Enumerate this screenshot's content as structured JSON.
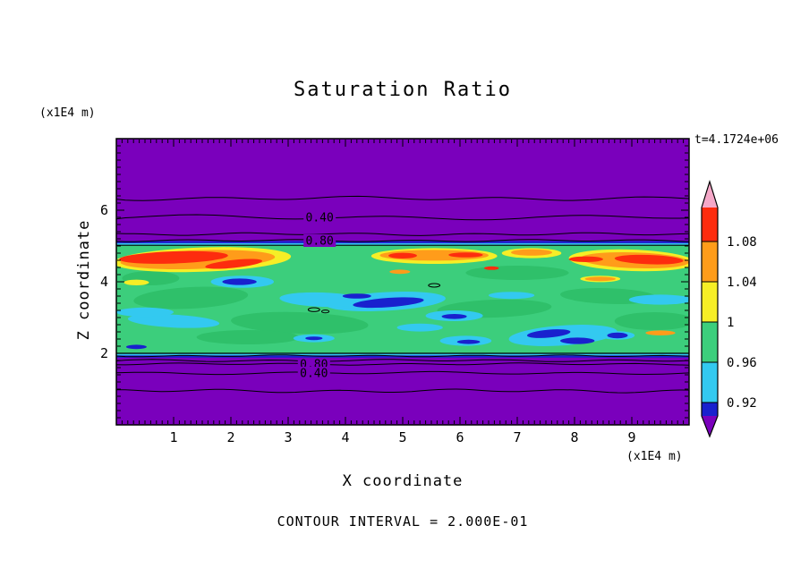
{
  "chart_data": {
    "type": "contour",
    "title": "Saturation Ratio",
    "xlabel": "X coordinate",
    "ylabel": "Z coordinate",
    "x_unit_label": "(x1E4 m)",
    "z_unit_label": "(x1E4 m)",
    "time_annotation": "t=4.1724e+06",
    "footer_note": "CONTOUR INTERVAL = 2.000E-01",
    "xlim": [
      0,
      10
    ],
    "zlim": [
      0,
      8
    ],
    "x_ticks": [
      1,
      2,
      3,
      4,
      5,
      6,
      7,
      8,
      9
    ],
    "z_ticks": [
      2,
      4,
      6
    ],
    "x_minor_step": 0.1,
    "z_minor_step": 0.2,
    "grid": false,
    "palette": {
      "purple": "#7A00BC",
      "blue": "#1921CE",
      "cyan": "#33C9F0",
      "green": "#3CCE7C",
      "green_dark": "#2FC06A",
      "yellow": "#F6EE26",
      "orange": "#FF9C1A",
      "red": "#FD2C0E",
      "pink": "#F5A8C8",
      "line": "#000000"
    },
    "colorbar": {
      "boundary_labels": [
        "1.08",
        "1.04",
        "1",
        "0.96",
        "0.92"
      ],
      "segments_top_to_bottom": [
        "red",
        "orange",
        "yellow",
        "green",
        "cyan",
        "blue"
      ],
      "tip_top": "pink",
      "tip_bottom": "purple"
    },
    "band": {
      "z_bottom": 2.0,
      "z_top": 5.02
    },
    "contour_lines": [
      {
        "z": 6.33,
        "amp": 1.6,
        "freq": 4,
        "phase": 0.5
      },
      {
        "z": 5.8,
        "amp": 2.0,
        "freq": 3,
        "phase": 2.1,
        "label": "0.40",
        "label_x": 3.55
      },
      {
        "z": 5.33,
        "amp": 1.1,
        "freq": 5,
        "phase": 4.0
      },
      {
        "z": 5.15,
        "amp": 0.9,
        "freq": 5,
        "phase": 1.0,
        "label": "0.80",
        "label_x": 3.55
      },
      {
        "z": 1.93,
        "amp": 0.7,
        "freq": 6,
        "phase": 0.3
      },
      {
        "z": 1.8,
        "amp": 0.9,
        "freq": 5,
        "phase": 2.6
      },
      {
        "z": 1.7,
        "amp": 0.8,
        "freq": 5,
        "phase": 1.4,
        "label": "0.80",
        "label_x": 3.45
      },
      {
        "z": 1.45,
        "amp": 1.1,
        "freq": 4,
        "phase": 3.3,
        "label": "0.40",
        "label_x": 3.45
      },
      {
        "z": 0.95,
        "amp": 1.4,
        "freq": 5,
        "phase": 5.2
      }
    ],
    "blobs": [
      [
        "green_dark",
        1.3,
        3.55,
        1.0,
        0.3,
        -3
      ],
      [
        "green_dark",
        3.2,
        2.85,
        1.2,
        0.3,
        2
      ],
      [
        "green_dark",
        6.6,
        3.25,
        1.0,
        0.25,
        -2
      ],
      [
        "green_dark",
        8.6,
        3.6,
        0.85,
        0.22,
        2
      ],
      [
        "green_dark",
        2.3,
        2.45,
        0.9,
        0.2,
        0
      ],
      [
        "green_dark",
        7.0,
        4.25,
        0.9,
        0.2,
        0
      ],
      [
        "green_dark",
        9.4,
        2.9,
        0.7,
        0.25,
        0
      ],
      [
        "green_dark",
        0.6,
        4.1,
        0.5,
        0.2,
        0
      ],
      [
        "yellow",
        1.5,
        4.62,
        1.55,
        0.34,
        -2
      ],
      [
        "yellow",
        5.55,
        4.72,
        1.1,
        0.22,
        0
      ],
      [
        "yellow",
        7.25,
        4.8,
        0.52,
        0.14,
        0
      ],
      [
        "yellow",
        9.0,
        4.6,
        1.1,
        0.3,
        2
      ],
      [
        "yellow",
        0.35,
        3.98,
        0.22,
        0.08,
        0
      ],
      [
        "yellow",
        8.45,
        4.08,
        0.35,
        0.09,
        0
      ],
      [
        "orange",
        1.42,
        4.62,
        1.35,
        0.26,
        -2
      ],
      [
        "orange",
        5.55,
        4.74,
        0.95,
        0.15,
        0
      ],
      [
        "orange",
        7.25,
        4.82,
        0.36,
        0.09,
        0
      ],
      [
        "orange",
        9.05,
        4.6,
        0.95,
        0.22,
        2
      ],
      [
        "orange",
        8.45,
        4.08,
        0.27,
        0.06,
        0
      ],
      [
        "orange",
        4.95,
        4.28,
        0.18,
        0.06,
        0
      ],
      [
        "orange",
        9.5,
        2.57,
        0.26,
        0.07,
        0
      ],
      [
        "red",
        1.0,
        4.68,
        0.95,
        0.17,
        -2
      ],
      [
        "red",
        2.05,
        4.5,
        0.5,
        0.11,
        -6
      ],
      [
        "red",
        5.0,
        4.73,
        0.25,
        0.08,
        0
      ],
      [
        "red",
        6.1,
        4.75,
        0.3,
        0.07,
        0
      ],
      [
        "red",
        9.3,
        4.62,
        0.6,
        0.13,
        2
      ],
      [
        "red",
        6.55,
        4.38,
        0.13,
        0.05,
        0
      ],
      [
        "red",
        8.2,
        4.63,
        0.3,
        0.08,
        0
      ],
      [
        "cyan",
        4.7,
        3.45,
        1.05,
        0.26,
        -3
      ],
      [
        "cyan",
        3.6,
        3.5,
        0.75,
        0.2,
        2
      ],
      [
        "cyan",
        2.2,
        4.0,
        0.55,
        0.17,
        0
      ],
      [
        "cyan",
        1.0,
        2.9,
        0.8,
        0.18,
        3
      ],
      [
        "cyan",
        0.5,
        3.15,
        0.5,
        0.13,
        0
      ],
      [
        "cyan",
        5.9,
        3.05,
        0.5,
        0.15,
        0
      ],
      [
        "cyan",
        7.8,
        2.5,
        0.95,
        0.28,
        -4
      ],
      [
        "cyan",
        6.1,
        2.35,
        0.45,
        0.14,
        0
      ],
      [
        "cyan",
        3.45,
        2.42,
        0.36,
        0.11,
        0
      ],
      [
        "cyan",
        9.5,
        3.5,
        0.55,
        0.14,
        0
      ],
      [
        "cyan",
        5.3,
        2.72,
        0.4,
        0.11,
        0
      ],
      [
        "cyan",
        8.75,
        2.5,
        0.3,
        0.12,
        0
      ],
      [
        "cyan",
        6.9,
        3.62,
        0.4,
        0.1,
        0
      ],
      [
        "blue",
        4.75,
        3.42,
        0.62,
        0.13,
        -4
      ],
      [
        "blue",
        2.15,
        4.0,
        0.3,
        0.09,
        0
      ],
      [
        "blue",
        5.9,
        3.03,
        0.22,
        0.07,
        0
      ],
      [
        "blue",
        7.55,
        2.55,
        0.38,
        0.11,
        -5
      ],
      [
        "blue",
        8.05,
        2.35,
        0.3,
        0.09,
        0
      ],
      [
        "blue",
        8.75,
        2.5,
        0.18,
        0.08,
        0
      ],
      [
        "blue",
        6.15,
        2.32,
        0.2,
        0.06,
        0
      ],
      [
        "blue",
        3.45,
        2.42,
        0.15,
        0.05,
        0
      ],
      [
        "blue",
        0.35,
        2.18,
        0.18,
        0.06,
        0
      ],
      [
        "blue",
        4.2,
        3.6,
        0.25,
        0.07,
        0
      ]
    ],
    "contour_loops": [
      [
        3.45,
        3.22,
        0.1,
        0.055
      ],
      [
        3.65,
        3.17,
        0.065,
        0.04
      ],
      [
        5.55,
        3.9,
        0.1,
        0.05
      ]
    ]
  }
}
